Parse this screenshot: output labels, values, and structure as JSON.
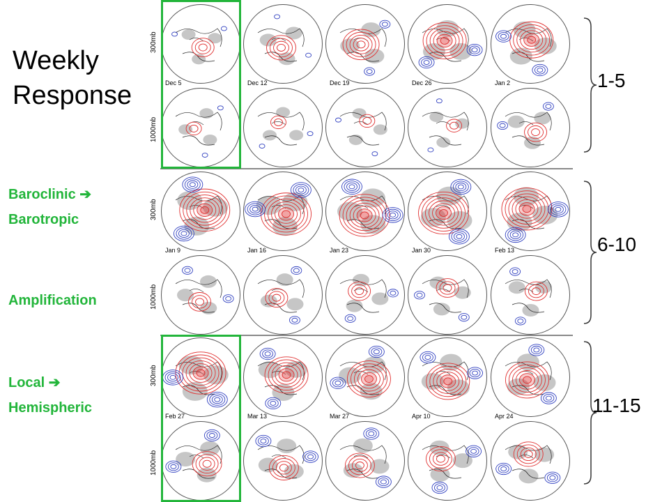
{
  "title_lines": [
    "Weekly",
    "Response"
  ],
  "annotations": {
    "baroclinic": "Baroclinic ➔",
    "barotropic": "Barotropic",
    "amplification": "Amplification",
    "local": "Local ➔",
    "hemispheric": "Hemispheric"
  },
  "ranges": [
    "1-5",
    "6-10",
    "11-15"
  ],
  "levels": {
    "upper": "300mb",
    "lower": "1000mb"
  },
  "rows": [
    {
      "dates": [
        "Dec 5",
        "Dec 12",
        "Dec 19",
        "Dec 26",
        "Jan 2"
      ],
      "upper_strength": [
        1,
        2,
        3,
        4,
        4
      ],
      "lower_strength": [
        1,
        1,
        1,
        1,
        2
      ]
    },
    {
      "dates": [
        "Jan 9",
        "Jan 16",
        "Jan 23",
        "Jan 30",
        "Feb 13"
      ],
      "upper_strength": [
        5,
        5,
        5,
        5,
        5
      ],
      "lower_strength": [
        2,
        2,
        2,
        2,
        2
      ]
    },
    {
      "dates": [
        "Feb 27",
        "Mar 13",
        "Mar 27",
        "Apr 10",
        "Apr 24"
      ],
      "upper_strength": [
        5,
        4,
        4,
        4,
        4
      ],
      "lower_strength": [
        3,
        3,
        3,
        3,
        3
      ]
    }
  ],
  "colors": {
    "positive": "#e03030",
    "negative": "#3040c0",
    "shading": "#a0a0a0",
    "highlight": "#22b53a"
  }
}
